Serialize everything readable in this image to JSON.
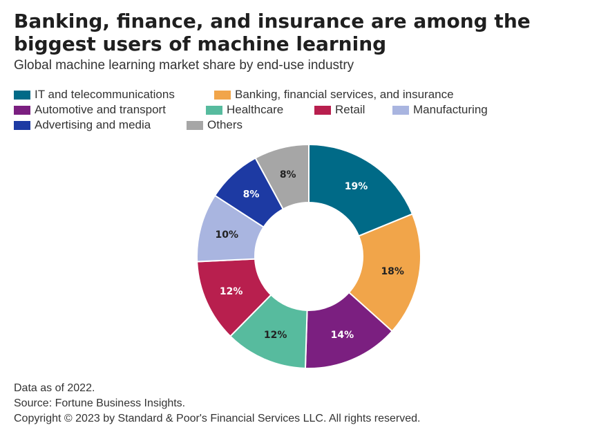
{
  "header": {
    "title": "Banking, finance, and insurance are among the biggest users of machine learning",
    "subtitle": "Global machine learning market share by end-use industry"
  },
  "legend": {
    "row1": [
      {
        "label": "IT and telecommunications",
        "color": "#006a87"
      },
      {
        "label": "Banking, financial services, and insurance",
        "color": "#f1a54a"
      }
    ],
    "row2": [
      {
        "label": "Automotive and transport",
        "color": "#7b1f80"
      },
      {
        "label": "Healthcare",
        "color": "#57bb9e"
      },
      {
        "label": "Retail",
        "color": "#b81f4e"
      },
      {
        "label": "Manufacturing",
        "color": "#a9b5e0"
      }
    ],
    "row3": [
      {
        "label": "Advertising and media",
        "color": "#1d3aa3"
      },
      {
        "label": "Others",
        "color": "#a6a6a6"
      }
    ]
  },
  "chart_data": {
    "type": "pie",
    "style": "donut",
    "labels": [
      "IT and telecommunications",
      "Banking, financial services, and insurance",
      "Automotive and transport",
      "Healthcare",
      "Retail",
      "Manufacturing",
      "Advertising and media",
      "Others"
    ],
    "values": [
      19,
      18,
      14,
      12,
      12,
      10,
      8,
      8
    ],
    "data_labels": [
      "19%",
      "18%",
      "14%",
      "12%",
      "12%",
      "10%",
      "8%",
      "8%"
    ],
    "colors": [
      "#006a87",
      "#f1a54a",
      "#7b1f80",
      "#57bb9e",
      "#b81f4e",
      "#a9b5e0",
      "#1d3aa3",
      "#a6a6a6"
    ],
    "label_colors": [
      "#ffffff",
      "#222222",
      "#ffffff",
      "#222222",
      "#ffffff",
      "#222222",
      "#ffffff",
      "#222222"
    ],
    "unit": "%",
    "legend_position": "top-left"
  },
  "footer": {
    "note": "Data as of 2022.",
    "source": "Source: Fortune Business Insights.",
    "copyright": "Copyright © 2023 by Standard & Poor's Financial Services LLC. All rights reserved."
  }
}
